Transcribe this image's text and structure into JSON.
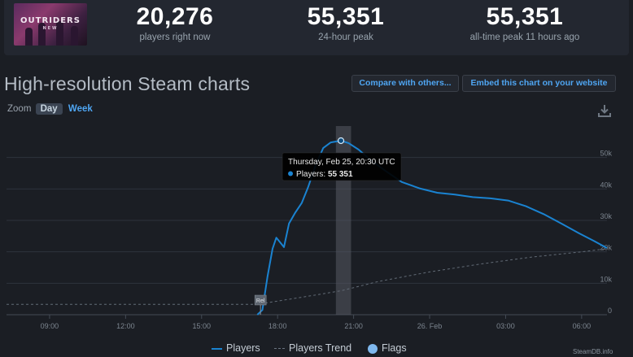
{
  "game": {
    "logo_line1": "OUTRIDERS",
    "logo_line2": "NEW"
  },
  "stats": [
    {
      "value": "20,276",
      "label": "players right now"
    },
    {
      "value": "55,351",
      "label": "24-hour peak"
    },
    {
      "value": "55,351",
      "label": "all-time peak 11 hours ago"
    }
  ],
  "title": "High-resolution Steam charts",
  "buttons": {
    "compare": "Compare with others...",
    "embed": "Embed this chart on your website"
  },
  "zoom": {
    "label": "Zoom",
    "day": "Day",
    "week": "Week",
    "active": "Day"
  },
  "tooltip": {
    "date": "Thursday, Feb 25, 20:30 UTC",
    "series": "Players:",
    "value": "55 351"
  },
  "flag": {
    "label": "Rel"
  },
  "legend": {
    "players": "Players",
    "trend": "Players Trend",
    "flags": "Flags"
  },
  "credit": "SteamDB.info",
  "colors": {
    "players": "#1a83d1",
    "trend": "#6b7480",
    "flags": "#7fb8ee",
    "accent": "#4fa6f3"
  },
  "chart_data": {
    "type": "line",
    "x_unit": "hours (UTC), 00:00 = Feb 25",
    "x_ticks": [
      {
        "x": 9,
        "label": "09:00"
      },
      {
        "x": 12,
        "label": "12:00"
      },
      {
        "x": 15,
        "label": "15:00"
      },
      {
        "x": 18,
        "label": "18:00"
      },
      {
        "x": 21,
        "label": "21:00"
      },
      {
        "x": 24,
        "label": "26. Feb"
      },
      {
        "x": 27,
        "label": "03:00"
      },
      {
        "x": 30,
        "label": "06:00"
      }
    ],
    "y_ticks": [
      {
        "y": 0,
        "label": "0"
      },
      {
        "y": 10000,
        "label": "10k"
      },
      {
        "y": 20000,
        "label": "20k"
      },
      {
        "y": 30000,
        "label": "30k"
      },
      {
        "y": 40000,
        "label": "40k"
      },
      {
        "y": 50000,
        "label": "50k"
      }
    ],
    "xlim": [
      7.3,
      31.0
    ],
    "ylim": [
      0,
      60000
    ],
    "highlight_band": [
      20.3,
      20.9
    ],
    "flag_x": 17.1,
    "tooltip_point": {
      "x": 20.5,
      "y": 55351
    },
    "series": [
      {
        "name": "Players",
        "points": [
          [
            17.2,
            0
          ],
          [
            17.4,
            1500
          ],
          [
            17.6,
            12000
          ],
          [
            17.8,
            21000
          ],
          [
            17.95,
            24500
          ],
          [
            18.15,
            22500
          ],
          [
            18.25,
            21500
          ],
          [
            18.45,
            29000
          ],
          [
            18.7,
            32500
          ],
          [
            18.95,
            35500
          ],
          [
            19.2,
            40500
          ],
          [
            19.5,
            47500
          ],
          [
            19.8,
            53000
          ],
          [
            20.1,
            54800
          ],
          [
            20.5,
            55351
          ],
          [
            20.8,
            54600
          ],
          [
            21.2,
            52500
          ],
          [
            21.7,
            49000
          ],
          [
            22.3,
            45500
          ],
          [
            22.9,
            42200
          ],
          [
            23.6,
            40200
          ],
          [
            24.3,
            38800
          ],
          [
            25.0,
            38200
          ],
          [
            25.7,
            37400
          ],
          [
            26.4,
            37000
          ],
          [
            27.1,
            36300
          ],
          [
            27.8,
            34500
          ],
          [
            28.5,
            32000
          ],
          [
            29.2,
            29000
          ],
          [
            29.9,
            25900
          ],
          [
            30.5,
            23400
          ],
          [
            31.0,
            21200
          ]
        ]
      },
      {
        "name": "Players Trend",
        "points": [
          [
            7.3,
            3300
          ],
          [
            17.2,
            3300
          ],
          [
            19.0,
            5600
          ],
          [
            20.5,
            7600
          ],
          [
            22.0,
            10600
          ],
          [
            24.0,
            13600
          ],
          [
            26.0,
            16100
          ],
          [
            28.0,
            18300
          ],
          [
            30.0,
            20000
          ],
          [
            31.0,
            21000
          ]
        ]
      }
    ]
  }
}
